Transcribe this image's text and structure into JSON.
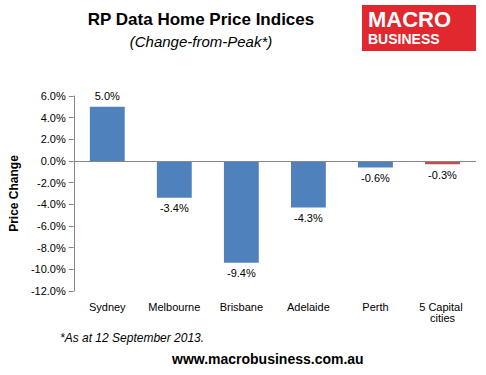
{
  "chart_data": {
    "type": "bar",
    "title": "RP Data Home Price Indices",
    "subtitle": "(Change-from-Peak*)",
    "y_label": "Price Change",
    "categories": [
      "Sydney",
      "Melbourne",
      "Brisbane",
      "Adelaide",
      "Perth",
      "5 Capital cities"
    ],
    "values": [
      5.0,
      -3.4,
      -9.4,
      -4.3,
      -0.6,
      -0.3
    ],
    "value_labels": [
      "5.0%",
      "-3.4%",
      "-9.4%",
      "-4.3%",
      "-0.6%",
      "-0.3%"
    ],
    "colors": [
      "#4f81bd",
      "#4f81bd",
      "#4f81bd",
      "#4f81bd",
      "#4f81bd",
      "#c0504d"
    ],
    "data_labels": true,
    "grid": false,
    "ylim": [
      -12,
      6
    ],
    "yticks": [
      {
        "value": -12,
        "label": "-12.0%"
      },
      {
        "value": -10,
        "label": "-10.0%"
      },
      {
        "value": -8,
        "label": "-8.0%"
      },
      {
        "value": -6,
        "label": "-6.0%"
      },
      {
        "value": -4,
        "label": "-4.0%"
      },
      {
        "value": -2,
        "label": "-2.0%"
      },
      {
        "value": 0,
        "label": "0.0%"
      },
      {
        "value": 2,
        "label": "2.0%"
      },
      {
        "value": 4,
        "label": "4.0%"
      },
      {
        "value": 6,
        "label": "6.0%"
      }
    ],
    "annotations": [
      "MACRO",
      "BUSINESS",
      "*As at 12 September 2013.",
      "www.macrobusiness.com.au"
    ]
  }
}
